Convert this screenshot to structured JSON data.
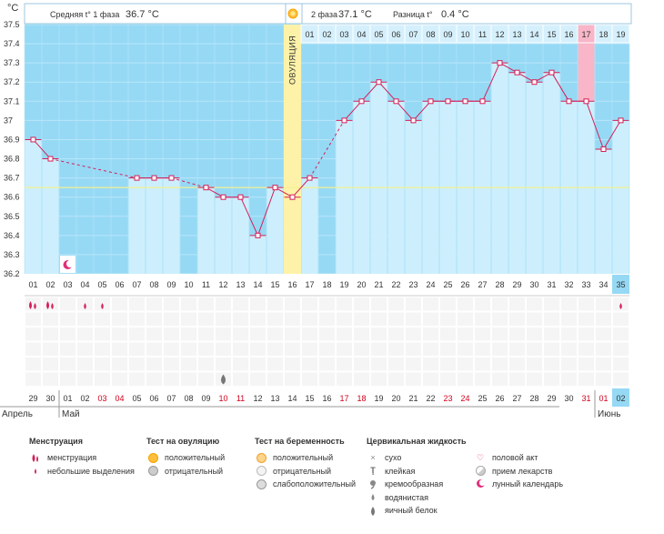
{
  "header": {
    "phase1_label": "Средняя t° 1 фаза",
    "phase1_value": "36.7 °C",
    "phase2_label": "2 фаза",
    "phase2_value": "37.1 °C",
    "diff_label": "Разница t°",
    "diff_value": "0.4 °C"
  },
  "chart_data": {
    "type": "line",
    "ylabel": "°C",
    "ylim": [
      36.2,
      37.5
    ],
    "yticks": [
      "37.5",
      "37.4",
      "37.3",
      "37.2",
      "37.1",
      "37",
      "36.9",
      "36.8",
      "36.7",
      "36.6",
      "36.5",
      "36.4",
      "36.3",
      "36.2"
    ],
    "cycle_days": [
      "01",
      "02",
      "03",
      "04",
      "05",
      "06",
      "07",
      "08",
      "09",
      "10",
      "11",
      "12",
      "13",
      "14",
      "15",
      "16",
      "17",
      "18",
      "19",
      "20",
      "21",
      "22",
      "23",
      "24",
      "25",
      "26",
      "27",
      "28",
      "29",
      "30",
      "31",
      "32",
      "33",
      "34",
      "35"
    ],
    "temperatures": [
      36.9,
      36.8,
      null,
      null,
      null,
      null,
      36.7,
      36.7,
      36.7,
      null,
      36.65,
      36.6,
      36.6,
      36.4,
      36.65,
      36.6,
      36.7,
      null,
      37.0,
      37.1,
      37.2,
      37.1,
      37.0,
      37.1,
      37.1,
      37.1,
      37.1,
      37.3,
      37.25,
      37.2,
      37.25,
      37.1,
      37.1,
      36.85,
      37.0
    ],
    "coverline": 36.65,
    "ovulation_label": "ОВУЛЯЦИЯ",
    "ovulation_index": 15,
    "phase2_days": [
      "01",
      "02",
      "03",
      "04",
      "05",
      "06",
      "07",
      "08",
      "09",
      "10",
      "11",
      "12",
      "13",
      "14",
      "15",
      "16",
      "17",
      "18",
      "19"
    ],
    "phase2_highlight_day": "17",
    "calendar_dates": [
      "29",
      "30",
      "01",
      "02",
      "03",
      "04",
      "05",
      "06",
      "07",
      "08",
      "09",
      "10",
      "11",
      "12",
      "13",
      "14",
      "15",
      "16",
      "17",
      "18",
      "19",
      "20",
      "21",
      "22",
      "23",
      "24",
      "25",
      "26",
      "27",
      "28",
      "29",
      "30",
      "31",
      "01",
      "02"
    ],
    "weekend_flags": [
      0,
      0,
      0,
      0,
      1,
      1,
      0,
      0,
      0,
      0,
      0,
      1,
      1,
      0,
      0,
      0,
      0,
      0,
      1,
      1,
      0,
      0,
      0,
      0,
      1,
      1,
      0,
      0,
      0,
      0,
      0,
      0,
      1,
      1,
      0
    ],
    "months": [
      "Апрель",
      "Май",
      "Июнь"
    ],
    "lunar_index": 2,
    "menstruation_heavy": [
      0,
      1
    ],
    "menstruation_light": [
      3,
      4,
      34
    ],
    "egg_white_index": 11,
    "colors": {
      "chart_bg": "#96d9f5",
      "bar": "#cdeffd",
      "ovulation": "#fdf2a8",
      "highlight": "#f8b6c8",
      "line": "#d42058",
      "weekend": "#d0021b",
      "today": "#96d9f5"
    }
  },
  "legend": {
    "menstruation": {
      "title": "Менструация",
      "items": [
        "менструация",
        "небольшие выделения"
      ]
    },
    "ovulation_test": {
      "title": "Тест на овуляцию",
      "items": [
        "положительный",
        "отрицательный"
      ]
    },
    "pregnancy_test": {
      "title": "Тест на беременность",
      "items": [
        "положительный",
        "отрицательный",
        "слабоположительный"
      ]
    },
    "cervical": {
      "title": "Цервикальная жидкость",
      "items": [
        "сухо",
        "клейкая",
        "кремообразная",
        "водянистая",
        "яичный белок"
      ]
    },
    "other": {
      "items": [
        "половой акт",
        "прием лекарств",
        "лунный календарь"
      ]
    },
    "icons": [
      "drop-pair-icon",
      "drop-icon",
      "sun-yellow-icon",
      "sun-grey-icon",
      "sun-orange-icon",
      "circle-white-icon",
      "circle-grey-icon",
      "cross-icon",
      "t-bar-icon",
      "comma-icon",
      "small-drop-icon",
      "big-drop-icon",
      "heart-icon",
      "pill-icon",
      "moon-icon"
    ]
  }
}
